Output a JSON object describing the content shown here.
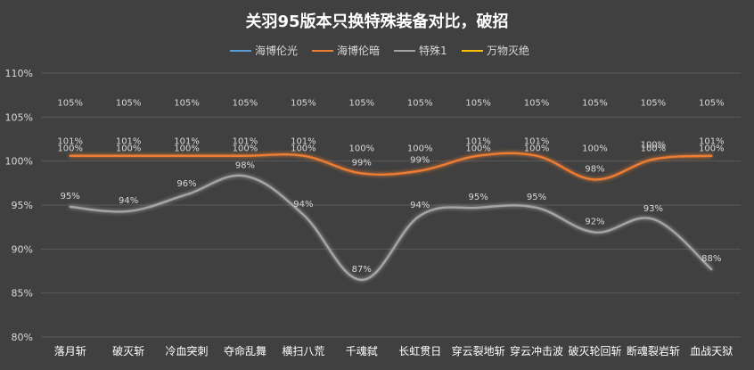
{
  "chart_data": {
    "type": "line",
    "title": "关羽95版本只换特殊装备对比，破招",
    "xlabel": "",
    "ylabel": "",
    "categories": [
      "落月斩",
      "破灭斩",
      "冷血突刺",
      "夺命乱舞",
      "横扫八荒",
      "千魂弑",
      "长虹贯日",
      "穿云裂地斩",
      "穿云冲击波",
      "破灭轮回斩",
      "断魂裂岩斩",
      "血战天狱"
    ],
    "y_ticks": [
      "80%",
      "85%",
      "90%",
      "95%",
      "100%",
      "105%",
      "110%"
    ],
    "ylim": [
      80,
      110
    ],
    "grid": true,
    "legend_position": "top",
    "series": [
      {
        "name": "海博伦光",
        "color": "#5b9bd5",
        "values": [
          100,
          100,
          100,
          100,
          100,
          100,
          100,
          100,
          100,
          100,
          100,
          100
        ],
        "labels": [
          "100%",
          "100%",
          "100%",
          "100%",
          "100%",
          "100%",
          "100%",
          "100%",
          "100%",
          "100%",
          "100%",
          "100%"
        ]
      },
      {
        "name": "海博伦暗",
        "color": "#ed7d31",
        "values": [
          100.6,
          100.6,
          100.6,
          100.6,
          100.6,
          98.6,
          98.9,
          100.6,
          100.6,
          97.9,
          100.2,
          100.6
        ],
        "labels": [
          "101%",
          "101%",
          "101%",
          "101%",
          "101%",
          "99%",
          "99%",
          "101%",
          "101%",
          "98%",
          "100%",
          "101%"
        ]
      },
      {
        "name": "特殊1",
        "color": "#a5a5a5",
        "values": [
          94.8,
          94.3,
          96.2,
          98.3,
          93.9,
          86.5,
          93.8,
          94.7,
          94.7,
          91.9,
          93.4,
          87.7
        ],
        "labels": [
          "95%",
          "94%",
          "96%",
          "98%",
          "94%",
          "87%",
          "94%",
          "95%",
          "95%",
          "92%",
          "93%",
          "88%"
        ]
      },
      {
        "name": "万物灭绝",
        "color": "#ffc000",
        "values": [
          105,
          105,
          105,
          105,
          105,
          105,
          105,
          105,
          105,
          105,
          105,
          105
        ],
        "labels": [
          "105%",
          "105%",
          "105%",
          "105%",
          "105%",
          "105%",
          "105%",
          "105%",
          "105%",
          "105%",
          "105%",
          "105%"
        ]
      }
    ]
  }
}
